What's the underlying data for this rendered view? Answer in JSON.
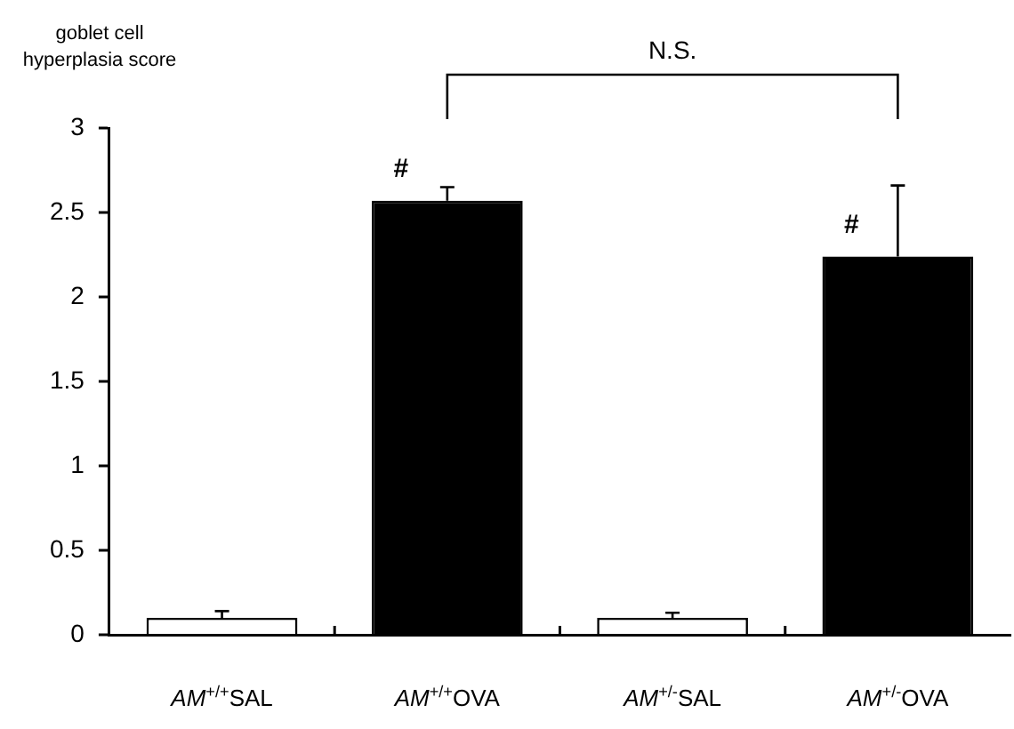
{
  "chart_data": {
    "type": "bar",
    "ylabel": "goblet cell\nhyperplasia score",
    "categories": [
      "AM$^{+/+}$SAL",
      "AM$^{+/+}$OVA",
      "AM$^{+/-}$SAL",
      "AM$^{+/-}$OVA"
    ],
    "values": [
      0.1,
      2.57,
      0.1,
      2.24
    ],
    "colors": [
      "#ffffff",
      "#000000",
      "#ffffff",
      "#000000"
    ],
    "errors": [
      [
        0.1,
        0.14
      ],
      [
        2.57,
        2.65
      ],
      [
        0.1,
        0.13
      ],
      [
        2.24,
        2.66
      ]
    ],
    "value_labels": [
      null,
      "#",
      null,
      "#"
    ],
    "ylim": [
      0,
      3
    ],
    "yticks": [
      0,
      0.5,
      1,
      1.5,
      2,
      2.5,
      3
    ],
    "grid": false,
    "legend": false,
    "annotations": [
      "N.S."
    ]
  }
}
